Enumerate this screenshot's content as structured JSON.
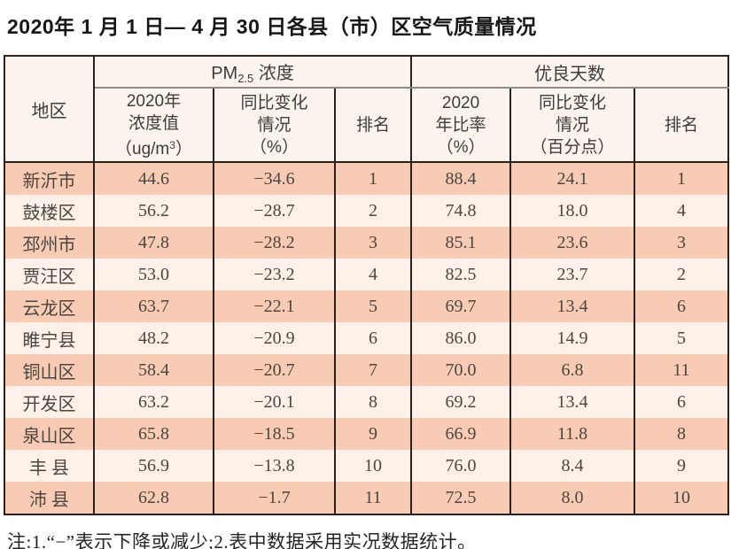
{
  "title": "2020年 1 月 1 日— 4 月 30 日各县（市）区空气质量情况",
  "note": "注:1.“−”表示下降或减少;2.表中数据采用实况数据统计。",
  "colors": {
    "row_shaded": "#f8ccb4",
    "row_light": "#fdf1e9",
    "header_bg": "#fcf3ec",
    "border_dark": "#2b211c",
    "header_divider": "#8c8c8c"
  },
  "table": {
    "region_header": "地区",
    "group_pm": {
      "prefix": "PM",
      "sub": "2.5",
      "suffix": " 浓度"
    },
    "group_days": "优良天数",
    "sub_headers": {
      "pm_value": {
        "line1": "2020年",
        "line2": "浓度值",
        "line3_pre": "（ug/m",
        "line3_sup": "3",
        "line3_post": "）"
      },
      "pm_change": {
        "line1": "同比变化",
        "line2": "情况",
        "line3": "（%）"
      },
      "pm_rank": "排名",
      "days_rate": {
        "line1": "2020",
        "line2": "年比率",
        "line3": "（%）"
      },
      "days_change": {
        "line1": "同比变化",
        "line2": "情况",
        "line3": "（百分点）"
      },
      "days_rank": "排名"
    },
    "rows": [
      {
        "region": "新沂市",
        "pm_value": "44.6",
        "pm_change": "−34.6",
        "pm_rank": "1",
        "days_rate": "88.4",
        "days_change": "24.1",
        "days_rank": "1"
      },
      {
        "region": "鼓楼区",
        "pm_value": "56.2",
        "pm_change": "−28.7",
        "pm_rank": "2",
        "days_rate": "74.8",
        "days_change": "18.0",
        "days_rank": "4"
      },
      {
        "region": "邳州市",
        "pm_value": "47.8",
        "pm_change": "−28.2",
        "pm_rank": "3",
        "days_rate": "85.1",
        "days_change": "23.6",
        "days_rank": "3"
      },
      {
        "region": "贾汪区",
        "pm_value": "53.0",
        "pm_change": "−23.2",
        "pm_rank": "4",
        "days_rate": "82.5",
        "days_change": "23.7",
        "days_rank": "2"
      },
      {
        "region": "云龙区",
        "pm_value": "63.7",
        "pm_change": "−22.1",
        "pm_rank": "5",
        "days_rate": "69.7",
        "days_change": "13.4",
        "days_rank": "6"
      },
      {
        "region": "睢宁县",
        "pm_value": "48.2",
        "pm_change": "−20.9",
        "pm_rank": "6",
        "days_rate": "86.0",
        "days_change": "14.9",
        "days_rank": "5"
      },
      {
        "region": "铜山区",
        "pm_value": "58.4",
        "pm_change": "−20.7",
        "pm_rank": "7",
        "days_rate": "70.0",
        "days_change": "6.8",
        "days_rank": "11"
      },
      {
        "region": "开发区",
        "pm_value": "63.2",
        "pm_change": "−20.1",
        "pm_rank": "8",
        "days_rate": "69.2",
        "days_change": "13.4",
        "days_rank": "6"
      },
      {
        "region": "泉山区",
        "pm_value": "65.8",
        "pm_change": "−18.5",
        "pm_rank": "9",
        "days_rate": "66.9",
        "days_change": "11.8",
        "days_rank": "8"
      },
      {
        "region": "丰 县",
        "pm_value": "56.9",
        "pm_change": "−13.8",
        "pm_rank": "10",
        "days_rate": "76.0",
        "days_change": "8.4",
        "days_rank": "9"
      },
      {
        "region": "沛 县",
        "pm_value": "62.8",
        "pm_change": "−1.7",
        "pm_rank": "11",
        "days_rate": "72.5",
        "days_change": "8.0",
        "days_rank": "10"
      }
    ]
  }
}
